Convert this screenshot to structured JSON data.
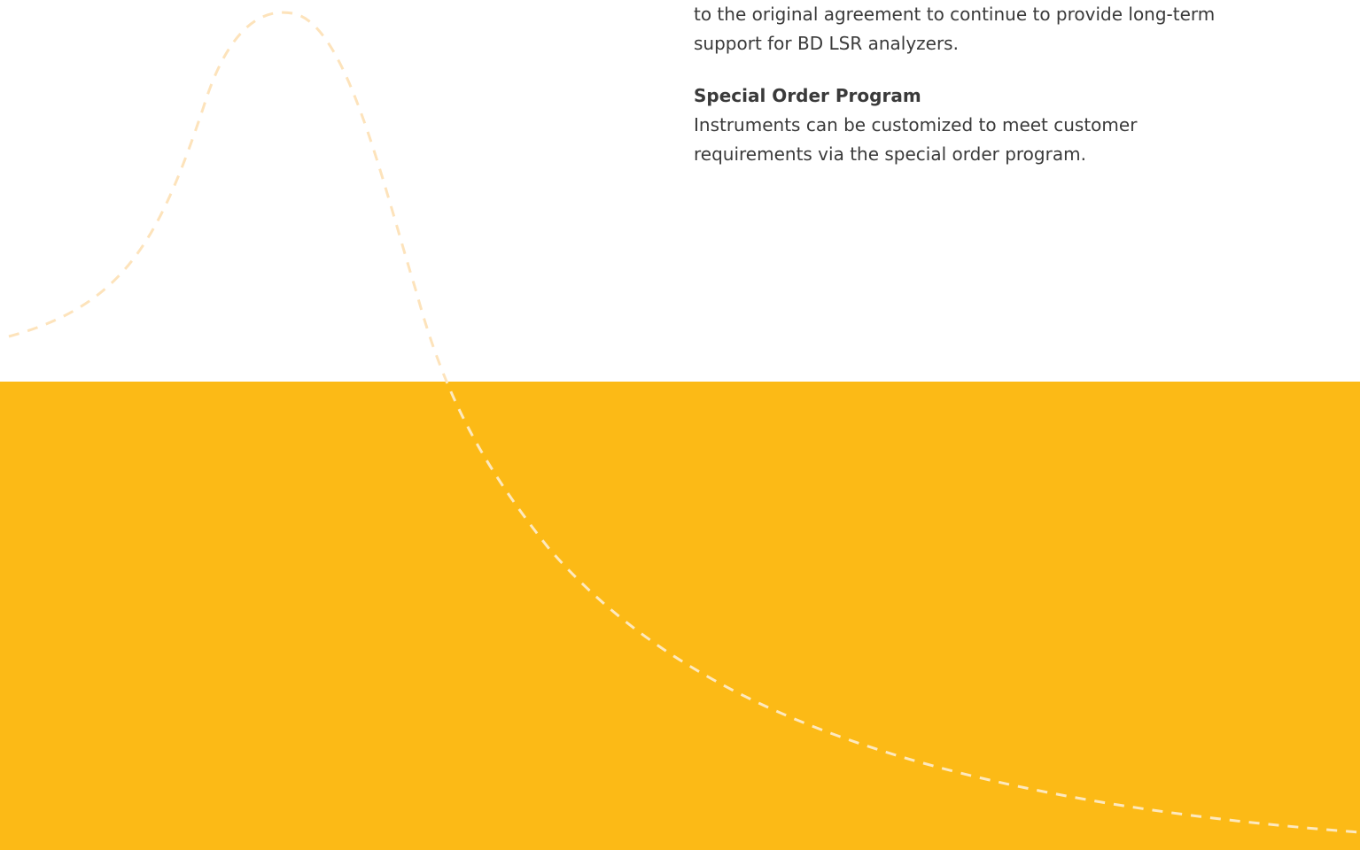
{
  "page": {
    "band_color": "#fcba16",
    "curve_color": "#fde3bb",
    "curve_color_on_band": "#fde9bf"
  },
  "content": {
    "intro_line_cut": "to the original agreement to continue to provide long-term",
    "intro_line_last": "support for BD LSR analyzers.",
    "section": {
      "heading": "Special Order Program",
      "line1": "Instruments can be customized to meet customer",
      "line2": "requirements via the special order program."
    }
  }
}
